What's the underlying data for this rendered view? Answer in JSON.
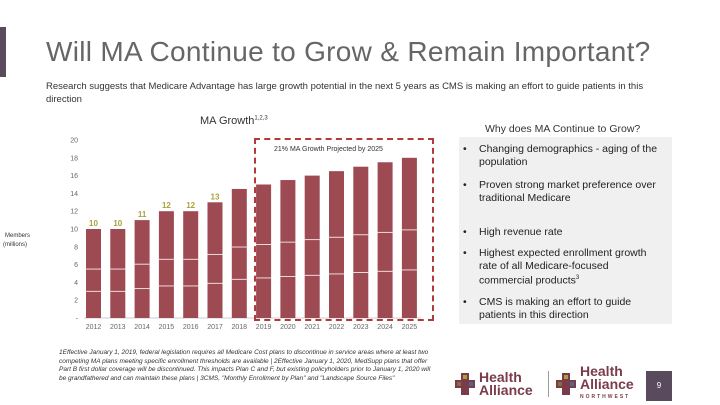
{
  "slide": {
    "title": "Will MA Continue to Grow & Remain Important?",
    "subtitle": "Research suggests that Medicare Advantage has large growth potential in the next 5 years as CMS is making an effort to guide patients in this direction",
    "page_number": "9"
  },
  "chart_data": {
    "type": "bar",
    "title": "MA Growth",
    "title_superscript": "1,2,3",
    "ylabel": "Members (millions)",
    "ylabel_line1": "Members",
    "ylabel_line2": "(millions)",
    "ylim": [
      0,
      20
    ],
    "yticks": [
      "-",
      "2",
      "4",
      "6",
      "8",
      "10",
      "12",
      "14",
      "16",
      "18",
      "20"
    ],
    "categories": [
      "2012",
      "2013",
      "2014",
      "2015",
      "2016",
      "2017",
      "2018",
      "2019",
      "2020",
      "2021",
      "2022",
      "2023",
      "2024",
      "2025"
    ],
    "values": [
      10,
      10,
      11,
      12,
      12,
      13,
      14.5,
      15,
      15.5,
      16,
      16.5,
      17,
      17.5,
      18
    ],
    "data_labels": [
      "10",
      "10",
      "11",
      "12",
      "12",
      "13",
      "",
      "",
      "",
      "",
      "",
      "",
      "",
      ""
    ],
    "bar_color": "#9e4a52",
    "annotation": "21% MA Growth Projected by 2025"
  },
  "sidebar": {
    "title": "Why does MA Continue to Grow?",
    "bullets": [
      "Changing demographics - aging of the population",
      "Proven strong market preference over traditional Medicare",
      "High revenue rate",
      "Highest expected enrollment growth rate of all Medicare-focused commercial products",
      "CMS is making an effort to guide patients in this direction"
    ],
    "bullet_glyph": "•",
    "bullet4_superscript": "3"
  },
  "footnote": {
    "text": "1Effective January 1, 2019, federal legislation requires all Medicare Cost plans to discontinue in service areas where at least two competing MA plans meeting specific enrollment thresholds are available | 2Effective January 1, 2020, MedSupp plans that offer Part B first dollar coverage will be discontinued. This impacts Plan C and F, but existing policyholders prior to January 1, 2020 will be grandfathered and can maintain these plans | 3CMS, \"Monthly Enrollment by Plan\" and \"Landscape Source Files\""
  },
  "logos": {
    "left_line1": "Health",
    "left_line2": "Alliance",
    "right_line1": "Health",
    "right_line2": "Alliance",
    "right_sub": "NORTHWEST"
  }
}
